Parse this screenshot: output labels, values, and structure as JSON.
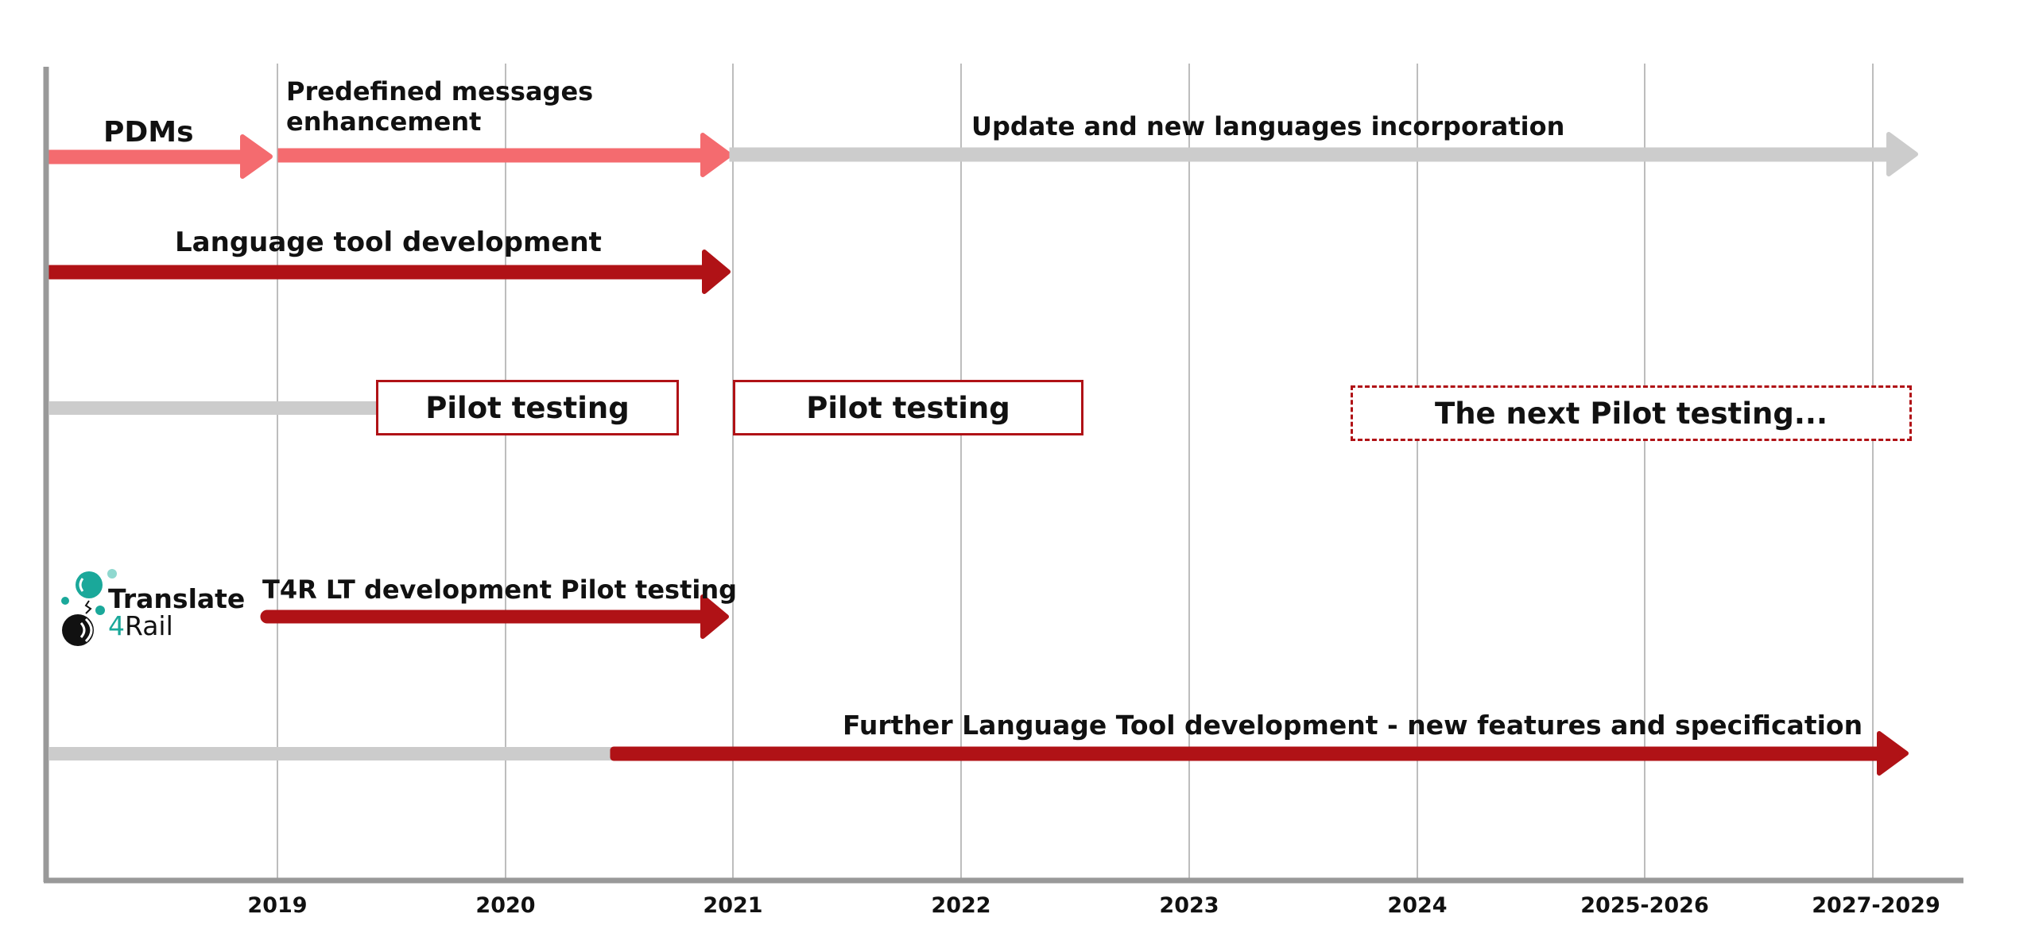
{
  "timeline": {
    "ticks": [
      "2019",
      "2020",
      "2021",
      "2022",
      "2023",
      "2024",
      "2025-2026",
      "2027-2029"
    ]
  },
  "rows": {
    "pdms": {
      "label": "PDMs"
    },
    "predefined": {
      "label_line1": "Predefined messages",
      "label_line2": "enhancement"
    },
    "update": {
      "label": "Update and new languages incorporation"
    },
    "language_tool": {
      "label": "Language tool development"
    },
    "pilot1": {
      "label": "Pilot testing"
    },
    "pilot2": {
      "label": "Pilot testing"
    },
    "pilot_next": {
      "label": "The next Pilot testing..."
    },
    "t4r": {
      "label": "T4R LT development Pilot testing"
    },
    "further": {
      "label": "Further Language Tool development - new features and specification"
    }
  },
  "logo": {
    "line1": "Translate",
    "line2_number": "4",
    "line2_rest": "Rail"
  },
  "colors": {
    "light_red": "#f46b6f",
    "dark_red": "#b01216",
    "gray_bar": "#cccccc",
    "axis": "#999999",
    "gridline": "#bdbdbd",
    "teal": "#1aa89a"
  }
}
